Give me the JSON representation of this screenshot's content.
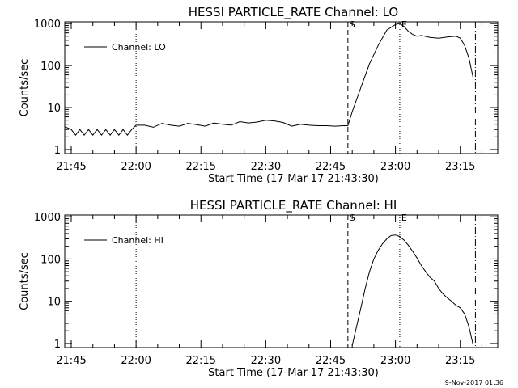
{
  "chart_data": [
    {
      "type": "line",
      "title": "HESSI PARTICLE_RATE Channel: LO",
      "xlabel": "Start Time (17-Mar-17 21:43:30)",
      "ylabel": "Counts/sec",
      "yscale": "log",
      "xlim": [
        "21:43:30",
        "23:23:40"
      ],
      "ylim": [
        0.8,
        1100
      ],
      "xticks": [
        "21:45",
        "22:00",
        "22:15",
        "22:30",
        "22:45",
        "23:00",
        "23:15"
      ],
      "yticks": [
        "1",
        "10",
        "100",
        "1000"
      ],
      "legend": {
        "position": "top-left",
        "entries": [
          "Channel: LO"
        ]
      },
      "markers": [
        {
          "label": "S",
          "time": "22:49:00",
          "style": "dashed"
        },
        {
          "label": "E",
          "time": "23:01:00",
          "style": "dotted"
        },
        {
          "label": "",
          "time": "22:00:00",
          "style": "dotted"
        },
        {
          "label": "",
          "time": "23:18:30",
          "style": "dashdot"
        }
      ],
      "series": [
        {
          "name": "Channel: LO",
          "x": [
            "21:43:30",
            "21:45:00",
            "21:46:00",
            "21:47:00",
            "21:48:00",
            "21:49:00",
            "21:50:00",
            "21:51:00",
            "21:52:00",
            "21:53:00",
            "21:54:00",
            "21:55:00",
            "21:56:00",
            "21:57:00",
            "21:58:00",
            "21:59:00",
            "22:00:00",
            "22:02:00",
            "22:04:00",
            "22:06:00",
            "22:08:00",
            "22:10:00",
            "22:12:00",
            "22:14:00",
            "22:16:00",
            "22:18:00",
            "22:20:00",
            "22:22:00",
            "22:24:00",
            "22:26:00",
            "22:28:00",
            "22:30:00",
            "22:32:00",
            "22:34:00",
            "22:36:00",
            "22:38:00",
            "22:40:00",
            "22:42:00",
            "22:44:00",
            "22:46:00",
            "22:48:00",
            "22:49:00",
            "22:50:00",
            "22:52:00",
            "22:54:00",
            "22:56:00",
            "22:58:00",
            "23:00:00",
            "23:01:00",
            "23:02:00",
            "23:03:00",
            "23:04:00",
            "23:05:00",
            "23:06:00",
            "23:08:00",
            "23:10:00",
            "23:12:00",
            "23:14:00",
            "23:15:00",
            "23:16:00",
            "23:17:00",
            "23:18:00"
          ],
          "y": [
            3.5,
            3.0,
            2.2,
            3.0,
            2.2,
            3.0,
            2.2,
            3.0,
            2.2,
            3.0,
            2.2,
            3.0,
            2.2,
            3.0,
            2.2,
            3.0,
            3.8,
            3.8,
            3.4,
            4.2,
            3.8,
            3.6,
            4.2,
            3.9,
            3.6,
            4.3,
            4.0,
            3.8,
            4.6,
            4.3,
            4.5,
            5.0,
            4.8,
            4.4,
            3.6,
            4.0,
            3.8,
            3.7,
            3.7,
            3.6,
            3.7,
            3.7,
            8,
            30,
            110,
            300,
            700,
            950,
            1000,
            850,
            650,
            550,
            500,
            520,
            470,
            450,
            480,
            500,
            450,
            300,
            150,
            50
          ]
        }
      ]
    },
    {
      "type": "line",
      "title": "HESSI PARTICLE_RATE Channel: HI",
      "xlabel": "Start Time (17-Mar-17 21:43:30)",
      "ylabel": "Counts/sec",
      "yscale": "log",
      "xlim": [
        "21:43:30",
        "23:23:40"
      ],
      "ylim": [
        0.8,
        1100
      ],
      "xticks": [
        "21:45",
        "22:00",
        "22:15",
        "22:30",
        "22:45",
        "23:00",
        "23:15"
      ],
      "yticks": [
        "1",
        "10",
        "100",
        "1000"
      ],
      "legend": {
        "position": "top-left",
        "entries": [
          "Channel: HI"
        ]
      },
      "markers": [
        {
          "label": "S",
          "time": "22:49:00",
          "style": "dashed"
        },
        {
          "label": "E",
          "time": "23:01:00",
          "style": "dotted"
        },
        {
          "label": "",
          "time": "22:00:00",
          "style": "dotted"
        },
        {
          "label": "",
          "time": "23:18:30",
          "style": "dashdot"
        }
      ],
      "series": [
        {
          "name": "Channel: HI",
          "x": [
            "22:50:00",
            "22:51:00",
            "22:52:00",
            "22:53:00",
            "22:54:00",
            "22:55:00",
            "22:56:00",
            "22:57:00",
            "22:58:00",
            "22:59:00",
            "23:00:00",
            "23:01:00",
            "23:02:00",
            "23:03:00",
            "23:04:00",
            "23:05:00",
            "23:06:00",
            "23:07:00",
            "23:08:00",
            "23:09:00",
            "23:10:00",
            "23:11:00",
            "23:12:00",
            "23:13:00",
            "23:14:00",
            "23:15:00",
            "23:16:00",
            "23:17:00",
            "23:18:00"
          ],
          "y": [
            0.9,
            2.5,
            7,
            20,
            50,
            100,
            160,
            230,
            300,
            360,
            370,
            340,
            280,
            210,
            150,
            105,
            70,
            50,
            37,
            30,
            20,
            15,
            12,
            10,
            8,
            7,
            5,
            2.5,
            0.9
          ]
        }
      ]
    }
  ],
  "footer": {
    "timestamp": "9-Nov-2017 01:36"
  }
}
